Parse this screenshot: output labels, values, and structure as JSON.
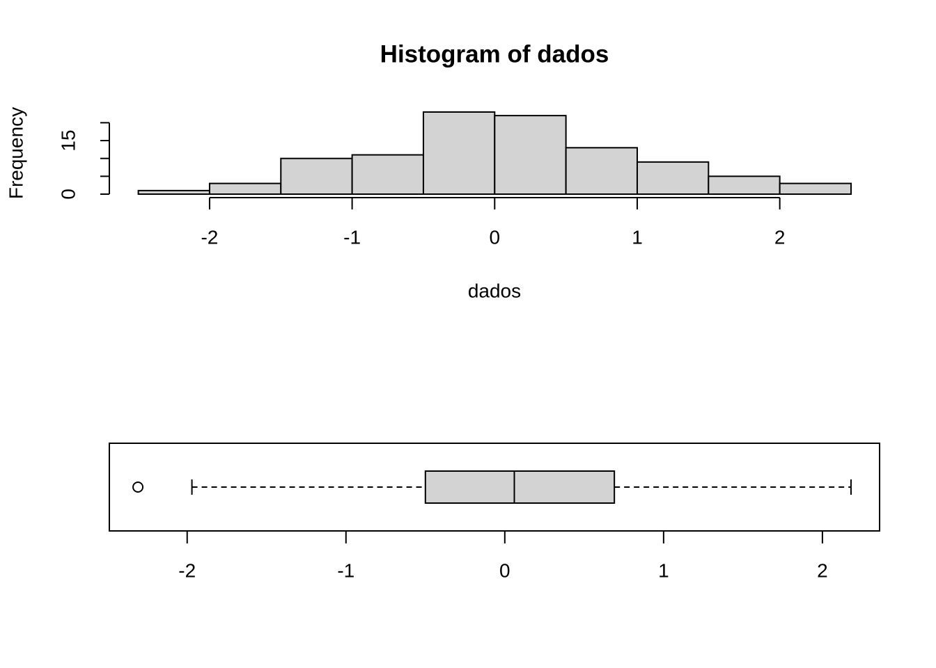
{
  "chart_data": [
    {
      "type": "histogram",
      "title": "Histogram of dados",
      "xlabel": "dados",
      "ylabel": "Frequency",
      "bins": [
        -2.5,
        -2,
        -1.5,
        -1,
        -0.5,
        0,
        0.5,
        1,
        1.5,
        2,
        2.5
      ],
      "values": [
        1,
        3,
        10,
        11,
        23,
        22,
        13,
        9,
        5,
        3
      ],
      "color": "#d3d3d3",
      "xlim": [
        -2.5,
        2.5
      ],
      "xticks": [
        -2,
        -1,
        0,
        1,
        2
      ],
      "ylim": [
        0,
        23
      ],
      "yticks": [
        0,
        {
          "value": 5,
          "label": null
        },
        {
          "value": 10,
          "label": null
        },
        15,
        {
          "value": 20,
          "label": null
        }
      ]
    },
    {
      "type": "boxplot",
      "color": "#d3d3d3",
      "whisker_low": -1.97,
      "q1": -0.5,
      "median": 0.06,
      "q3": 0.69,
      "whisker_high": 2.18,
      "outliers": [
        -2.31
      ],
      "xlim": [
        -2.49,
        2.36
      ],
      "xticks": [
        -2,
        -1,
        0,
        1,
        2
      ]
    }
  ]
}
